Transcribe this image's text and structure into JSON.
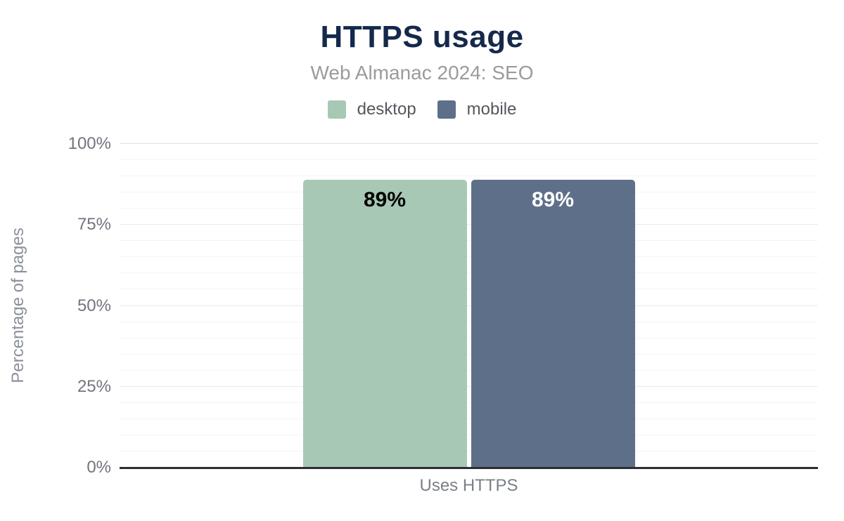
{
  "header": {
    "title": "HTTPS usage",
    "subtitle": "Web Almanac 2024: SEO"
  },
  "legend": [
    {
      "label": "desktop",
      "color": "#a7c8b5"
    },
    {
      "label": "mobile",
      "color": "#5e7089"
    }
  ],
  "chart_data": {
    "type": "bar",
    "title": "HTTPS usage",
    "subtitle": "Web Almanac 2024: SEO",
    "categories": [
      "Uses HTTPS"
    ],
    "series": [
      {
        "name": "desktop",
        "values": [
          89
        ],
        "color": "#a7c8b5",
        "label_color": "#000000"
      },
      {
        "name": "mobile",
        "values": [
          89
        ],
        "color": "#5e7089",
        "label_color": "#ffffff"
      }
    ],
    "xlabel": "",
    "ylabel": "Percentage of pages",
    "ylim": [
      0,
      100
    ],
    "yticks": [
      0,
      25,
      50,
      75,
      100
    ],
    "ytick_format": "{v}%",
    "minor_grid_step": 5,
    "major_grid_step": 25,
    "grid": true,
    "legend_position": "top",
    "value_label_format": "{v}%"
  },
  "colors": {
    "title_text": "#14294b",
    "subtitle_text": "#9b9b9b",
    "legend_text": "#54575c",
    "tick_text": "#70757d",
    "axis_title_text": "#8b909a",
    "category_text": "#7b8087",
    "axis_line": "#2b2f33",
    "grid_minor": "#f4f4f4",
    "grid_major": "#eaeaea",
    "grid_top": "#e0e0e0",
    "background": "#ffffff"
  }
}
